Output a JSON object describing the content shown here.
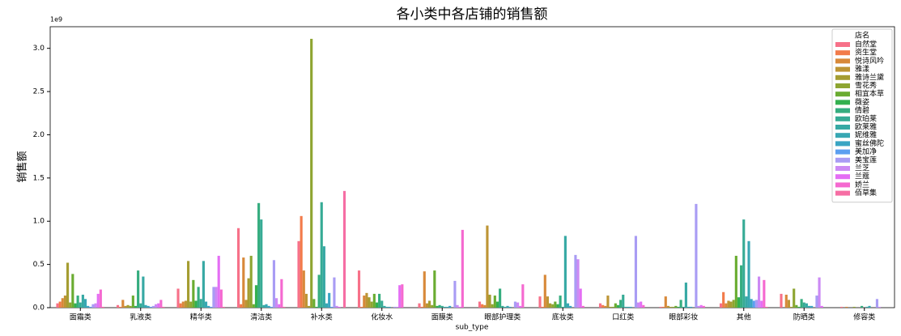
{
  "chart_data": {
    "type": "bar",
    "title": "各小类中各店铺的销售额",
    "xlabel": "sub_type",
    "ylabel": "销售额",
    "y_offset_label": "1e9",
    "categories": [
      "面霜类",
      "乳液类",
      "精华类",
      "清洁类",
      "补水类",
      "化妆水",
      "面膜类",
      "眼部护理类",
      "底妆类",
      "口红类",
      "眼部彩妆",
      "其他",
      "防晒类",
      "修容类"
    ],
    "ylim": [
      0,
      3.25
    ],
    "yticks": [
      {
        "value": 0,
        "label": "0.0"
      },
      {
        "value": 0.5,
        "label": "0.5"
      },
      {
        "value": 1,
        "label": "1.0"
      },
      {
        "value": 1.5,
        "label": "1.5"
      },
      {
        "value": 2,
        "label": "2.0"
      },
      {
        "value": 2.5,
        "label": "2.5"
      },
      {
        "value": 3,
        "label": "3.0"
      }
    ],
    "legend_title": "店名",
    "legend": "upper right",
    "series": [
      {
        "name": "自然堂",
        "color": "#f77189",
        "values": [
          0.05,
          0.03,
          0.22,
          0.92,
          0.77,
          0.43,
          0.05,
          0.07,
          0.13,
          0.05,
          0.01,
          0.05,
          0.16,
          0.01
        ]
      },
      {
        "name": "资生堂",
        "color": "#f27b4a",
        "values": [
          0.07,
          0.01,
          0.05,
          0.04,
          1.06,
          0.01,
          0.01,
          0.04,
          0.01,
          0.03,
          0.01,
          0.18,
          0,
          0
        ]
      },
      {
        "name": "悦诗风吟",
        "color": "#d8893a",
        "values": [
          0.11,
          0.09,
          0.07,
          0.58,
          0.43,
          0.14,
          0.42,
          0.03,
          0.38,
          0.02,
          0.13,
          0.05,
          0.15,
          0.01
        ]
      },
      {
        "name": "雅漾",
        "color": "#bd9535",
        "values": [
          0.14,
          0.02,
          0.08,
          0.09,
          0.16,
          0.17,
          0.05,
          0.95,
          0.13,
          0.14,
          0.02,
          0.08,
          0.09,
          0
        ]
      },
      {
        "name": "雅诗兰黛",
        "color": "#a59d32",
        "values": [
          0.52,
          0.03,
          0.54,
          0.34,
          0.02,
          0.12,
          0.08,
          0.15,
          0.05,
          0.01,
          0.01,
          0.07,
          0.01,
          0
        ]
      },
      {
        "name": "雪花秀",
        "color": "#8ea531",
        "values": [
          0.06,
          0.02,
          0.07,
          0.6,
          3.11,
          0.07,
          0.03,
          0.04,
          0.04,
          0.01,
          0.01,
          0.09,
          0.22,
          0.01
        ]
      },
      {
        "name": "相宜本草",
        "color": "#6aac31",
        "values": [
          0.39,
          0.14,
          0.32,
          0.04,
          0.1,
          0.16,
          0.43,
          0.14,
          0.07,
          0.05,
          0.02,
          0.6,
          0.03,
          0
        ]
      },
      {
        "name": "薇姿",
        "color": "#33b04f",
        "values": [
          0.05,
          0.02,
          0.08,
          0.26,
          0.01,
          0.06,
          0.02,
          0.07,
          0.04,
          0.03,
          0.01,
          0.12,
          0.01,
          0
        ]
      },
      {
        "name": "倩碧",
        "color": "#35ad7f",
        "values": [
          0.14,
          0.43,
          0.24,
          1.21,
          0.38,
          0.16,
          0.03,
          0.22,
          0.14,
          0.09,
          0.09,
          0.49,
          0.1,
          0.02
        ]
      },
      {
        "name": "欧珀莱",
        "color": "#36ab95",
        "values": [
          0.06,
          0.05,
          0.1,
          1.02,
          1.22,
          0.08,
          0.02,
          0.02,
          0.01,
          0.15,
          0.01,
          1.02,
          0.06,
          0
        ]
      },
      {
        "name": "欧莱雅",
        "color": "#37a9a4",
        "values": [
          0.15,
          0.36,
          0.54,
          0.03,
          0.71,
          0.02,
          0.01,
          0.01,
          0.83,
          0.01,
          0.29,
          0.13,
          0.05,
          0.01
        ]
      },
      {
        "name": "妮维雅",
        "color": "#38a7b3",
        "values": [
          0.1,
          0.03,
          0.07,
          0.04,
          0.05,
          0.01,
          0.01,
          0.02,
          0.05,
          0.01,
          0.01,
          0.77,
          0.02,
          0.02
        ]
      },
      {
        "name": "蜜丝佛陀",
        "color": "#3aa5c3",
        "values": [
          0.02,
          0.02,
          0.02,
          0.02,
          0.17,
          0.01,
          0.02,
          0.01,
          0.02,
          0.01,
          0.01,
          0.1,
          0.02,
          0
        ]
      },
      {
        "name": "美加净",
        "color": "#5c9ff0",
        "values": [
          0.01,
          0.01,
          0.01,
          0.01,
          0.01,
          0,
          0,
          0,
          0,
          0,
          0,
          0.08,
          0,
          0
        ]
      },
      {
        "name": "美宝莲",
        "color": "#a99cf4",
        "values": [
          0.04,
          0.02,
          0.24,
          0.55,
          0.35,
          0.01,
          0.31,
          0.07,
          0.61,
          0.83,
          1.2,
          0.09,
          0.14,
          0.1
        ]
      },
      {
        "name": "兰芝",
        "color": "#cc8af4",
        "values": [
          0.05,
          0.04,
          0.24,
          0.11,
          0.02,
          0.01,
          0.03,
          0.06,
          0.56,
          0.06,
          0.02,
          0.36,
          0.35,
          0.01
        ]
      },
      {
        "name": "兰蔻",
        "color": "#e46ef4",
        "values": [
          0.16,
          0.05,
          0.6,
          0.04,
          0.01,
          0.26,
          0.01,
          0.02,
          0.22,
          0.07,
          0.03,
          0.08,
          0.02,
          0
        ]
      },
      {
        "name": "娇兰",
        "color": "#f569d0",
        "values": [
          0.21,
          0.09,
          0.21,
          0.33,
          0,
          0.27,
          0.9,
          0.27,
          0.02,
          0.03,
          0.02,
          0.32,
          0,
          0
        ]
      },
      {
        "name": "佰草集",
        "color": "#f66ea4",
        "values": [
          0.01,
          0.01,
          0.01,
          0.01,
          1.35,
          0,
          0,
          0,
          0,
          0,
          0,
          0.01,
          0,
          0
        ]
      }
    ]
  }
}
